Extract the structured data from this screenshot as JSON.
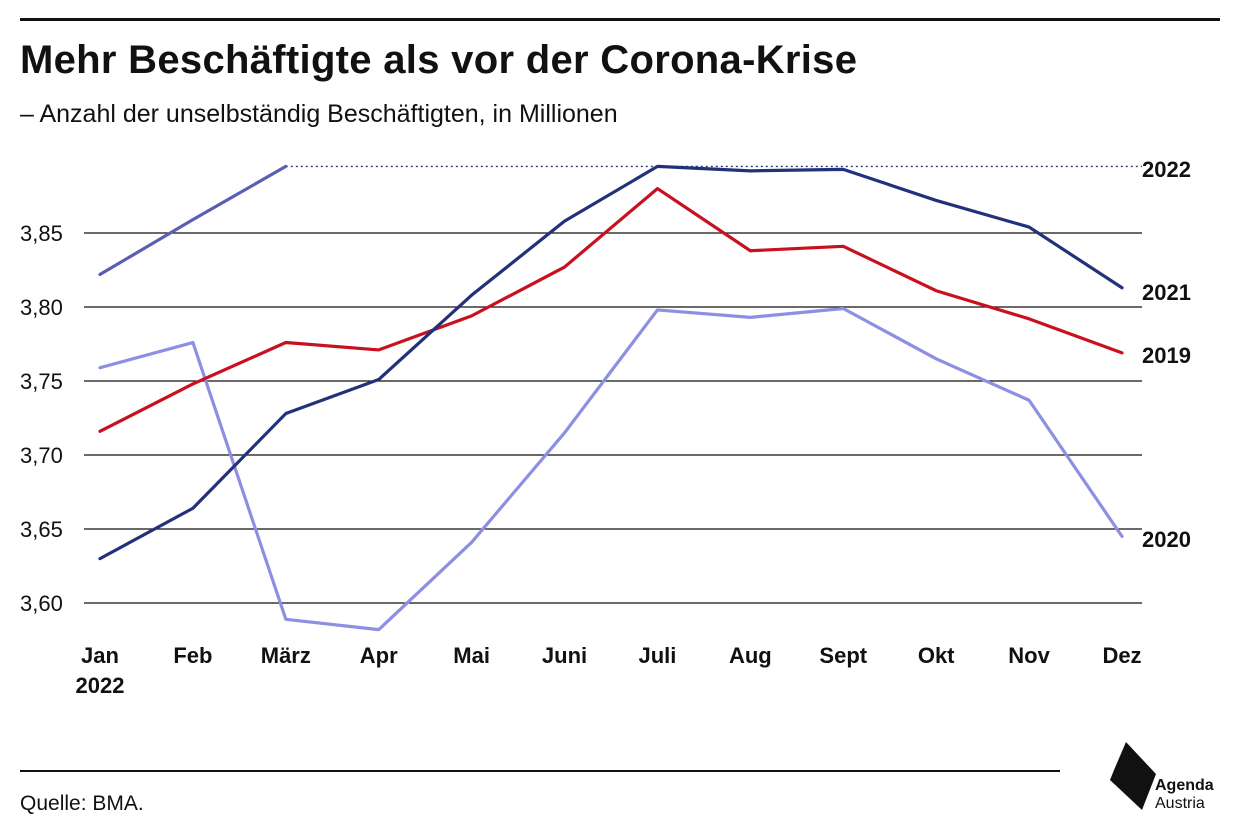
{
  "header": {
    "title": "Mehr Beschäftigte als vor der Corona-Krise",
    "subtitle": "– Anzahl der unselbständig Beschäftigten, in Millionen"
  },
  "footer": {
    "source": "Quelle: BMA.",
    "logo_line1": "Agenda",
    "logo_line2": "Austria"
  },
  "chart_data": {
    "type": "line",
    "title": "Mehr Beschäftigte als vor der Corona-Krise",
    "subtitle": "– Anzahl der unselbständig Beschäftigten, in Millionen",
    "x": [
      "Jan",
      "Feb",
      "März",
      "Apr",
      "Mai",
      "Juni",
      "Juli",
      "Aug",
      "Sept",
      "Okt",
      "Nov",
      "Dez"
    ],
    "x_first_sublabel": "2022",
    "ylim": [
      3.585,
      3.895
    ],
    "yticks": [
      3.6,
      3.65,
      3.7,
      3.75,
      3.8,
      3.85
    ],
    "ytick_labels": [
      "3,60",
      "3,65",
      "3,70",
      "3,75",
      "3,80",
      "3,85"
    ],
    "grid": true,
    "legend": "line-end labels, right",
    "series": [
      {
        "name": "2022",
        "color": "#5b5fb4",
        "values": [
          3.822,
          3.859,
          3.895,
          null,
          null,
          null,
          null,
          null,
          null,
          null,
          null,
          null
        ]
      },
      {
        "name": "2021",
        "color": "#23317a",
        "values": [
          3.63,
          3.664,
          3.728,
          3.751,
          3.808,
          3.858,
          3.895,
          3.892,
          3.893,
          3.872,
          3.854,
          3.813
        ]
      },
      {
        "name": "2019",
        "color": "#c8101e",
        "values": [
          3.716,
          3.748,
          3.776,
          3.771,
          3.794,
          3.827,
          3.88,
          3.838,
          3.841,
          3.811,
          3.792,
          3.769
        ]
      },
      {
        "name": "2020",
        "color": "#8d8fe2",
        "values": [
          3.759,
          3.776,
          3.589,
          3.582,
          3.641,
          3.715,
          3.798,
          3.793,
          3.799,
          3.765,
          3.737,
          3.645
        ]
      }
    ],
    "reference_line": {
      "value": 3.895,
      "style": "dotted",
      "color": "#2a3a7a"
    }
  }
}
